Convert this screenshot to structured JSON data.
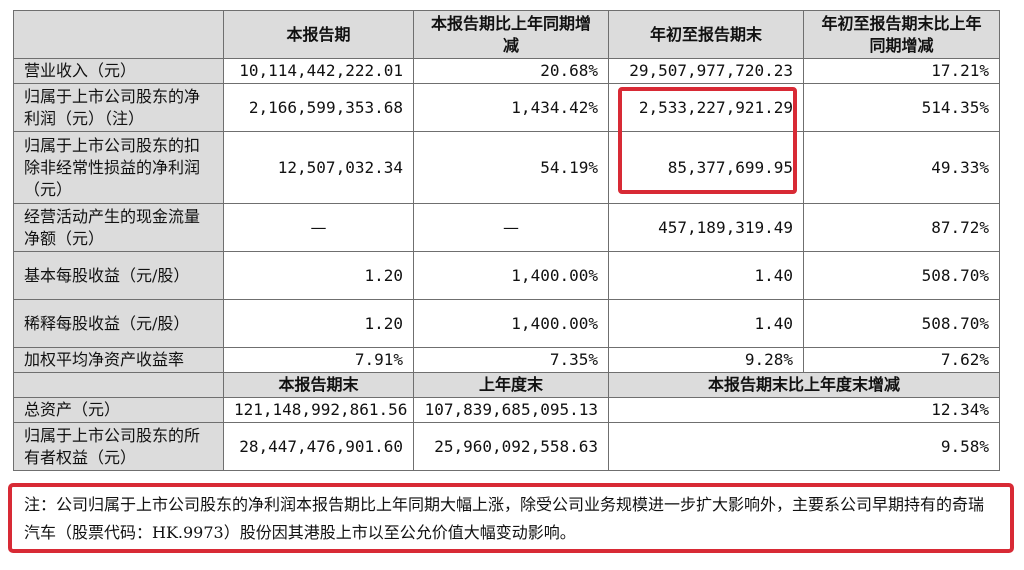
{
  "header": {
    "col_current": "本报告期",
    "col_change": "本报告期比上年同期增减",
    "col_ytd": "年初至报告期末",
    "col_ytd_change": "年初至报告期末比上年同期增减"
  },
  "rows": [
    {
      "label": "营业收入（元）",
      "current": "10,114,442,222.01",
      "change": "20.68%",
      "ytd": "29,507,977,720.23",
      "ytd_change": "17.21%"
    },
    {
      "label": "归属于上市公司股东的净利润（元）（注）",
      "current": "2,166,599,353.68",
      "change": "1,434.42%",
      "ytd": "2,533,227,921.29",
      "ytd_change": "514.35%"
    },
    {
      "label": "归属于上市公司股东的扣除非经常性损益的净利润（元）",
      "current": "12,507,032.34",
      "change": "54.19%",
      "ytd": "85,377,699.95",
      "ytd_change": "49.33%"
    },
    {
      "label": "经营活动产生的现金流量净额（元）",
      "current": "—",
      "change": "—",
      "ytd": "457,189,319.49",
      "ytd_change": "87.72%"
    },
    {
      "label": "基本每股收益（元/股）",
      "current": "1.20",
      "change": "1,400.00%",
      "ytd": "1.40",
      "ytd_change": "508.70%"
    },
    {
      "label": "稀释每股收益（元/股）",
      "current": "1.20",
      "change": "1,400.00%",
      "ytd": "1.40",
      "ytd_change": "508.70%"
    },
    {
      "label": "加权平均净资产收益率",
      "current": "7.91%",
      "change": "7.35%",
      "ytd": "9.28%",
      "ytd_change": "7.62%"
    }
  ],
  "header2": {
    "col_period_end": "本报告期末",
    "col_prev_year_end": "上年度末",
    "col_change": "本报告期末比上年度末增减"
  },
  "rows2": [
    {
      "label": "总资产（元）",
      "period_end": "121,148,992,861.56",
      "prev_year_end": "107,839,685,095.13",
      "change": "12.34%"
    },
    {
      "label": "归属于上市公司股东的所有者权益（元）",
      "period_end": "28,447,476,901.60",
      "prev_year_end": "25,960,092,558.63",
      "change": "9.58%"
    }
  ],
  "note": "注：公司归属于上市公司股东的净利润本报告期比上年同期大幅上涨，除受公司业务规模进一步扩大影响外，主要系公司早期持有的奇瑞汽车（股票代码：HK.9973）股份因其港股上市以至公允价值大幅变动影响。",
  "colors": {
    "highlight_border": "#d82a35",
    "header_bg": "#dcdcdc",
    "grid": "#6f6f6f"
  }
}
